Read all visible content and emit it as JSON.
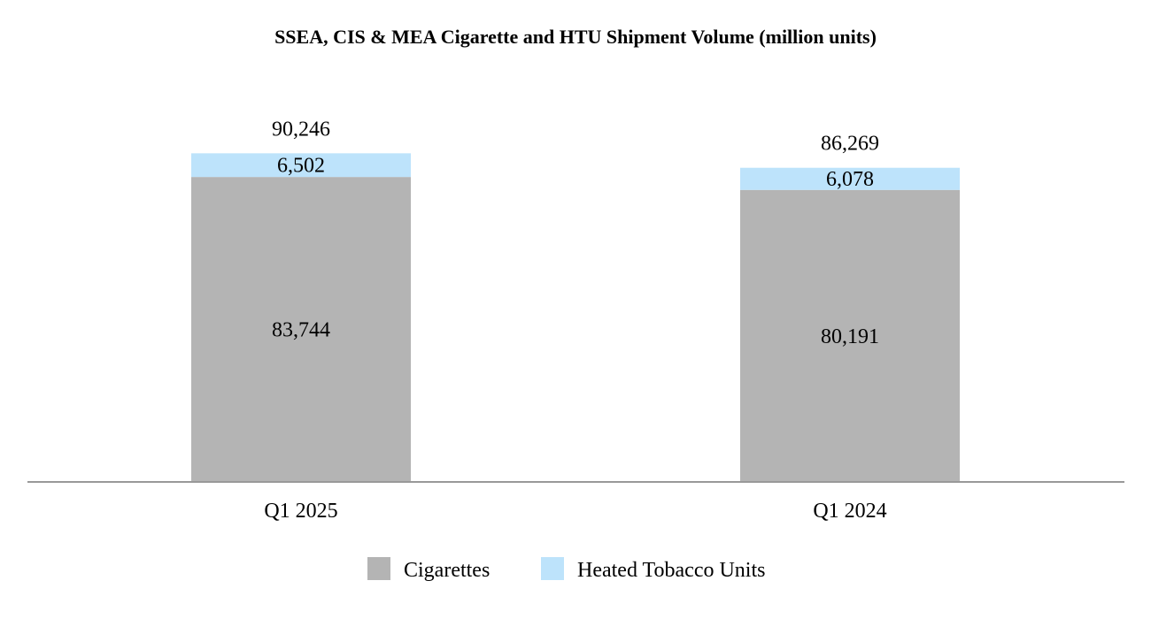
{
  "chart_data": {
    "type": "bar",
    "stacked": true,
    "title": "SSEA, CIS & MEA Cigarette and HTU Shipment Volume (million units)",
    "categories": [
      "Q1 2025",
      "Q1 2024"
    ],
    "series": [
      {
        "name": "Cigarettes",
        "values": [
          83744,
          80191
        ],
        "labels": [
          "83,744",
          "80,191"
        ],
        "color": "#b4b4b4"
      },
      {
        "name": "Heated Tobacco Units",
        "values": [
          6502,
          6078
        ],
        "labels": [
          "6,502",
          "6,078"
        ],
        "color": "#bde3fb"
      }
    ],
    "totals": [
      90246,
      86269
    ],
    "total_labels": [
      "90,246",
      "86,269"
    ],
    "xlabel": "",
    "ylabel": "",
    "ylim": [
      0,
      110000
    ],
    "grid": false,
    "legend_position": "bottom-center",
    "axis_color": "#999999"
  }
}
